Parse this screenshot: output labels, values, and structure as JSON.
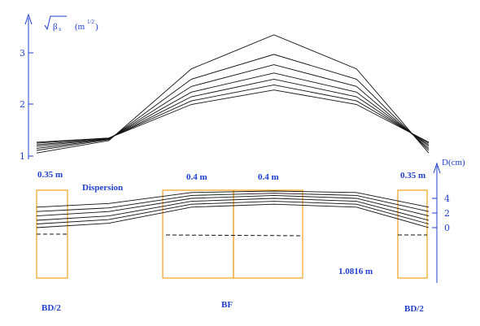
{
  "chart_data": [
    {
      "type": "line",
      "title": "",
      "ylabel_parts": {
        "root_symbol": "√",
        "beta": "β",
        "subscript": "x",
        "unit_open": "(m",
        "unit_exp": "1/2",
        "unit_close": ")"
      },
      "y_ticks": [
        "1",
        "2",
        "3"
      ],
      "ylim": [
        0.9,
        3.7
      ],
      "x_positions": [
        0,
        0.35,
        0.75,
        1.15,
        1.55,
        1.9
      ],
      "series": [
        {
          "values": [
            1.06,
            1.3,
            2.69,
            3.35,
            2.69,
            1.06
          ]
        },
        {
          "values": [
            1.11,
            1.32,
            2.49,
            2.97,
            2.49,
            1.11
          ]
        },
        {
          "values": [
            1.15,
            1.33,
            2.35,
            2.77,
            2.35,
            1.15
          ]
        },
        {
          "values": [
            1.19,
            1.34,
            2.24,
            2.61,
            2.24,
            1.19
          ]
        },
        {
          "values": [
            1.22,
            1.34,
            2.15,
            2.49,
            2.15,
            1.22
          ]
        },
        {
          "values": [
            1.25,
            1.35,
            2.07,
            2.38,
            2.07,
            1.25
          ]
        },
        {
          "values": [
            1.27,
            1.35,
            2.0,
            2.28,
            2.0,
            1.27
          ]
        }
      ]
    },
    {
      "type": "line",
      "title": "Dispersion",
      "ylabel": "D(cm)",
      "y_ticks": [
        "4",
        "2",
        "0"
      ],
      "ylim": [
        -7,
        5
      ],
      "x_positions": [
        0,
        0.35,
        0.75,
        1.15,
        1.55,
        1.9
      ],
      "series": [
        {
          "values": [
            2.8,
            3.3,
            4.8,
            5.0,
            4.8,
            2.8
          ]
        },
        {
          "values": [
            2.2,
            2.7,
            4.4,
            4.7,
            4.4,
            2.2
          ]
        },
        {
          "values": [
            1.6,
            2.2,
            4.0,
            4.4,
            4.0,
            1.6
          ]
        },
        {
          "values": [
            1.0,
            1.6,
            3.6,
            4.0,
            3.6,
            1.0
          ]
        },
        {
          "values": [
            0.5,
            1.1,
            3.2,
            3.6,
            3.2,
            0.5
          ]
        },
        {
          "values": [
            0.0,
            0.6,
            2.8,
            3.2,
            2.8,
            0.0
          ]
        }
      ],
      "zero_level": 0
    }
  ],
  "labels": {
    "bd_length_left": "0.35 m",
    "bd_length_right": "0.35 m",
    "bf_half_left": "0.4 m",
    "bf_half_right": "0.4 m",
    "drift_length": "1.0816 m",
    "bd_left": "BD/2",
    "bf": "BF",
    "bd_right": "BD/2"
  }
}
